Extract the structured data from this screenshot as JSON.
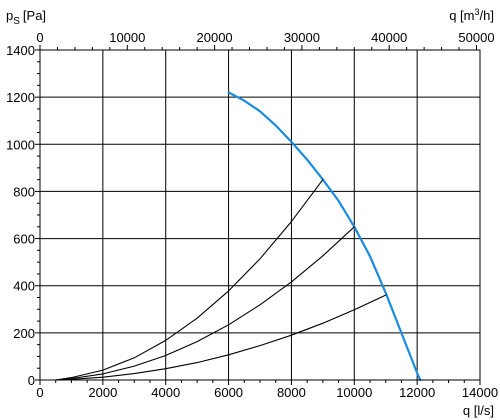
{
  "chart_data": {
    "type": "line",
    "title": "",
    "ylabel_main": "p",
    "ylabel_sub": "S",
    "ylabel_unit": "[Pa]",
    "xlabel": "q [l/s]",
    "x2label_main": "q [m",
    "x2label_sup": "3",
    "x2label_end": "/h]",
    "xlim": [
      0,
      14000
    ],
    "ylim": [
      0,
      1400
    ],
    "x2lim": [
      0,
      50400
    ],
    "x_ticks": [
      0,
      2000,
      4000,
      6000,
      8000,
      10000,
      12000,
      14000
    ],
    "y_ticks": [
      0,
      200,
      400,
      600,
      800,
      1000,
      1200,
      1400
    ],
    "x2_ticks": [
      0,
      10000,
      20000,
      30000,
      40000,
      50000
    ],
    "grid": true,
    "colors": {
      "fan_curve": "#1a8ce0",
      "system_curves": "#000000",
      "grid": "#000000"
    },
    "series": [
      {
        "kind": "fan-curve",
        "x": [
          6000,
          6500,
          7000,
          7500,
          8000,
          8500,
          9000,
          9500,
          10000,
          10500,
          11000,
          11500,
          12000,
          12100
        ],
        "y": [
          1220,
          1185,
          1140,
          1080,
          1010,
          935,
          850,
          760,
          650,
          525,
          370,
          200,
          30,
          0
        ]
      },
      {
        "kind": "system-curve",
        "x": [
          500,
          1000,
          2000,
          3000,
          4000,
          5000,
          6000,
          7000,
          8000,
          9000
        ],
        "y": [
          0,
          10,
          42,
          94,
          168,
          262,
          378,
          514,
          672,
          850
        ]
      },
      {
        "kind": "system-curve",
        "x": [
          500,
          1000,
          2000,
          3000,
          4000,
          5000,
          6000,
          7000,
          8000,
          9000,
          10000
        ],
        "y": [
          0,
          6.5,
          26,
          59,
          104,
          163,
          234,
          319,
          416,
          527,
          650
        ]
      },
      {
        "kind": "system-curve",
        "x": [
          500,
          1000,
          2000,
          3000,
          4000,
          5000,
          6000,
          7000,
          8000,
          9000,
          10000,
          11000
        ],
        "y": [
          0,
          3,
          12,
          27,
          48,
          74,
          107,
          146,
          190,
          241,
          298,
          360
        ]
      }
    ]
  }
}
